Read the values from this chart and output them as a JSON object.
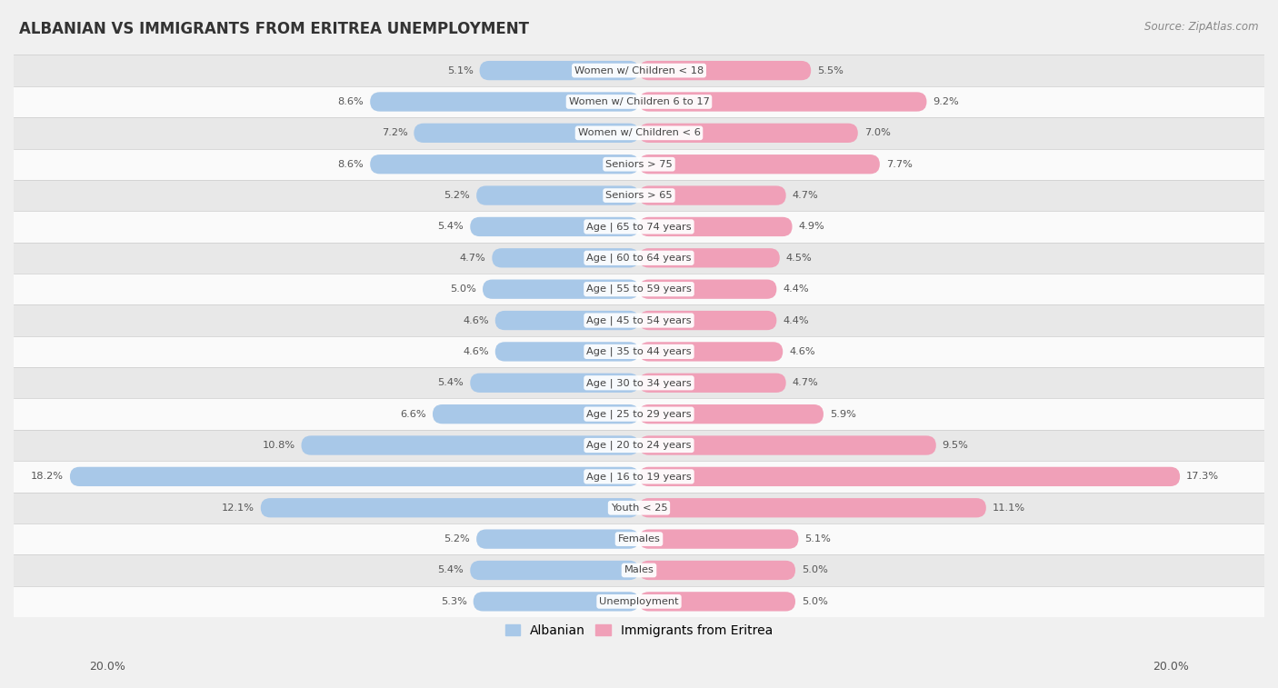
{
  "title": "ALBANIAN VS IMMIGRANTS FROM ERITREA UNEMPLOYMENT",
  "source": "Source: ZipAtlas.com",
  "categories": [
    "Unemployment",
    "Males",
    "Females",
    "Youth < 25",
    "Age | 16 to 19 years",
    "Age | 20 to 24 years",
    "Age | 25 to 29 years",
    "Age | 30 to 34 years",
    "Age | 35 to 44 years",
    "Age | 45 to 54 years",
    "Age | 55 to 59 years",
    "Age | 60 to 64 years",
    "Age | 65 to 74 years",
    "Seniors > 65",
    "Seniors > 75",
    "Women w/ Children < 6",
    "Women w/ Children 6 to 17",
    "Women w/ Children < 18"
  ],
  "albanian": [
    5.3,
    5.4,
    5.2,
    12.1,
    18.2,
    10.8,
    6.6,
    5.4,
    4.6,
    4.6,
    5.0,
    4.7,
    5.4,
    5.2,
    8.6,
    7.2,
    8.6,
    5.1
  ],
  "eritrea": [
    5.0,
    5.0,
    5.1,
    11.1,
    17.3,
    9.5,
    5.9,
    4.7,
    4.6,
    4.4,
    4.4,
    4.5,
    4.9,
    4.7,
    7.7,
    7.0,
    9.2,
    5.5
  ],
  "albanian_color": "#a8c8e8",
  "eritrea_color": "#f0a0b8",
  "bg_color": "#f0f0f0",
  "row_color_light": "#fafafa",
  "row_color_dark": "#e8e8e8",
  "separator_color": "#cccccc",
  "label_color": "#555555",
  "max_val": 20.0,
  "legend_albanian": "Albanian",
  "legend_eritrea": "Immigrants from Eritrea"
}
